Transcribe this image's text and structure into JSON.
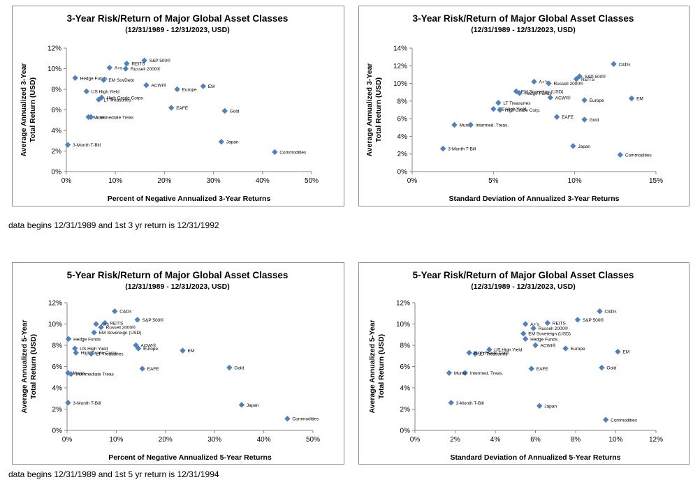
{
  "note1": "data begins 12/31/1989 and 1st 3 yr return is 12/31/1992",
  "note2": "data begins 12/31/1989 and 1st 5 yr return is 12/31/1994",
  "chart_data": [
    {
      "type": "scatter",
      "title": "3-Year Risk/Return of Major Global Asset Classes",
      "subtitle": "(12/31/1989 - 12/31/2023, USD)",
      "xlabel": "Percent of Negative Annualized 3-Year Returns",
      "ylabel": "Average Annualized 3-Year Total Return (USD)",
      "xlim": [
        0,
        50
      ],
      "ylim": [
        0,
        12
      ],
      "xticks": [
        "0%",
        "10%",
        "20%",
        "30%",
        "40%",
        "50%"
      ],
      "yticks": [
        "0%",
        "2%",
        "4%",
        "6%",
        "8%",
        "10%",
        "12%"
      ],
      "marker_color": "#4f81bd",
      "points": [
        {
          "label": "S&P 500®",
          "x": 15.9,
          "y": 10.8
        },
        {
          "label": "REITS",
          "x": 12.3,
          "y": 10.5
        },
        {
          "label": "Russell 2000®",
          "x": 12.1,
          "y": 10.0
        },
        {
          "label": "A+s",
          "x": 8.8,
          "y": 10.1
        },
        {
          "label": "Hedge Funds",
          "x": 1.8,
          "y": 9.1
        },
        {
          "label": "EM SovDebt",
          "x": 7.6,
          "y": 8.9
        },
        {
          "label": "US High Yield",
          "x": 4.1,
          "y": 7.8
        },
        {
          "label": "High Grade Corps",
          "x": 7.2,
          "y": 7.2
        },
        {
          "label": "LT Treasuries",
          "x": 6.6,
          "y": 7.0
        },
        {
          "label": "ACWI®",
          "x": 16.3,
          "y": 8.4
        },
        {
          "label": "Europe",
          "x": 22.6,
          "y": 8.0
        },
        {
          "label": "EM",
          "x": 27.9,
          "y": 8.3
        },
        {
          "label": "EAFE",
          "x": 21.4,
          "y": 6.2
        },
        {
          "label": "Gold",
          "x": 32.3,
          "y": 5.9
        },
        {
          "label": "Intermediate Treas",
          "x": 5.0,
          "y": 5.3
        },
        {
          "label": "Munis",
          "x": 4.5,
          "y": 5.3
        },
        {
          "label": "3-Month T-Bill",
          "x": 0.3,
          "y": 2.6
        },
        {
          "label": "Japan",
          "x": 31.6,
          "y": 2.9
        },
        {
          "label": "Commodities",
          "x": 42.5,
          "y": 1.9
        }
      ]
    },
    {
      "type": "scatter",
      "title": "3-Year Risk/Return of Major Global Asset Classes",
      "subtitle": "(12/31/1989 - 12/31/2023, USD)",
      "xlabel": "Standard Deviation of Annualized 3-Year Returns",
      "ylabel": "Average Annualized 3-Year Total Return (USD)",
      "xlim": [
        0,
        15
      ],
      "ylim": [
        0,
        14
      ],
      "xticks": [
        "0%",
        "5%",
        "10%",
        "15%"
      ],
      "yticks": [
        "0%",
        "2%",
        "4%",
        "6%",
        "8%",
        "10%",
        "12%",
        "14%"
      ],
      "marker_color": "#4f81bd",
      "points": [
        {
          "label": "C&Ds",
          "x": 12.4,
          "y": 12.2
        },
        {
          "label": "A+'s",
          "x": 7.5,
          "y": 10.2
        },
        {
          "label": "S&P 500®",
          "x": 10.3,
          "y": 10.8
        },
        {
          "label": "REITS",
          "x": 10.1,
          "y": 10.5
        },
        {
          "label": "Russell 2000®",
          "x": 8.4,
          "y": 10.0
        },
        {
          "label": "EM Sovereign (USD)",
          "x": 6.4,
          "y": 9.1
        },
        {
          "label": "Hedge Funds",
          "x": 6.6,
          "y": 8.9
        },
        {
          "label": "ACWI®",
          "x": 8.5,
          "y": 8.4
        },
        {
          "label": "Europe",
          "x": 10.6,
          "y": 8.1
        },
        {
          "label": "EM",
          "x": 13.5,
          "y": 8.3
        },
        {
          "label": "LT Treasuries",
          "x": 5.3,
          "y": 7.8
        },
        {
          "label": "US High Yield",
          "x": 5.0,
          "y": 7.1
        },
        {
          "label": "High Grade Corp.",
          "x": 5.4,
          "y": 7.0
        },
        {
          "label": "EAFE",
          "x": 8.9,
          "y": 6.2
        },
        {
          "label": "Gold",
          "x": 10.6,
          "y": 5.9
        },
        {
          "label": "Munis",
          "x": 2.6,
          "y": 5.3
        },
        {
          "label": "Intermed. Treas.",
          "x": 3.6,
          "y": 5.3
        },
        {
          "label": "3-Month T-Bill",
          "x": 1.9,
          "y": 2.6
        },
        {
          "label": "Japan",
          "x": 9.9,
          "y": 2.9
        },
        {
          "label": "Commodities",
          "x": 12.8,
          "y": 1.9
        }
      ]
    },
    {
      "type": "scatter",
      "title": "5-Year Risk/Return of Major Global Asset Classes",
      "subtitle": "(12/31/1989 - 12/31/2023, USD)",
      "xlabel": "Percent of Negative Annualized 5-Year Returns",
      "ylabel": "Average Annualized 5-Year Total Return (USD)",
      "xlim": [
        0,
        50
      ],
      "ylim": [
        0,
        12
      ],
      "xticks": [
        "0%",
        "10%",
        "20%",
        "30%",
        "40%",
        "50%"
      ],
      "yticks": [
        "0%",
        "2%",
        "4%",
        "6%",
        "8%",
        "10%",
        "12%"
      ],
      "marker_color": "#4f81bd",
      "points": [
        {
          "label": "C&Ds",
          "x": 9.7,
          "y": 11.2
        },
        {
          "label": "S&P 500®",
          "x": 14.3,
          "y": 10.4
        },
        {
          "label": "REITS",
          "x": 7.7,
          "y": 10.1
        },
        {
          "label": "A+s",
          "x": 5.9,
          "y": 10.0
        },
        {
          "label": "Russell 2000®",
          "x": 6.9,
          "y": 9.7
        },
        {
          "label": "EM Sovereign (USD)",
          "x": 5.5,
          "y": 9.2
        },
        {
          "label": "Hedge Funds",
          "x": 0.3,
          "y": 8.6
        },
        {
          "label": "US High Yield",
          "x": 1.6,
          "y": 7.7
        },
        {
          "label": "High Grade Corps",
          "x": 1.8,
          "y": 7.3
        },
        {
          "label": "LT Treasuries",
          "x": 4.9,
          "y": 7.2
        },
        {
          "label": "ACWI®",
          "x": 14.0,
          "y": 8.0
        },
        {
          "label": "Europe",
          "x": 14.5,
          "y": 7.7
        },
        {
          "label": "EM",
          "x": 23.5,
          "y": 7.5
        },
        {
          "label": "EAFE",
          "x": 15.3,
          "y": 5.8
        },
        {
          "label": "Gold",
          "x": 33.0,
          "y": 5.9
        },
        {
          "label": "Intermediate Treas",
          "x": 0.8,
          "y": 5.3
        },
        {
          "label": "Munis",
          "x": 0.2,
          "y": 5.4
        },
        {
          "label": "3-Month T-Bill",
          "x": 0.2,
          "y": 2.6
        },
        {
          "label": "Japan",
          "x": 35.5,
          "y": 2.4
        },
        {
          "label": "Commodities",
          "x": 44.8,
          "y": 1.1
        }
      ]
    },
    {
      "type": "scatter",
      "title": "5-Year Risk/Return of Major Global Asset Classes",
      "subtitle": "(12/31/1989 - 12/31/2023, USD)",
      "xlabel": "Standard Deviation of Annualized 5-Year Returns",
      "ylabel": "Average Annualized 5-Year Total Return (USD)",
      "xlim": [
        0,
        12
      ],
      "ylim": [
        0,
        12
      ],
      "xticks": [
        "0%",
        "2%",
        "4%",
        "6%",
        "8%",
        "10%",
        "12%"
      ],
      "yticks": [
        "0%",
        "2%",
        "4%",
        "6%",
        "8%",
        "10%",
        "12%"
      ],
      "marker_color": "#4f81bd",
      "points": [
        {
          "label": "C&Ds",
          "x": 9.2,
          "y": 11.2
        },
        {
          "label": "S&P 500®",
          "x": 8.1,
          "y": 10.4
        },
        {
          "label": "REITS",
          "x": 6.6,
          "y": 10.1
        },
        {
          "label": "A+'s",
          "x": 5.5,
          "y": 10.0
        },
        {
          "label": "Russell 2000®",
          "x": 5.9,
          "y": 9.6
        },
        {
          "label": "EM Sovereign (USD)",
          "x": 5.4,
          "y": 9.1
        },
        {
          "label": "Hedge Funds",
          "x": 5.5,
          "y": 8.6
        },
        {
          "label": "ACWI®",
          "x": 6.0,
          "y": 8.0
        },
        {
          "label": "Europe",
          "x": 7.5,
          "y": 7.7
        },
        {
          "label": "EM",
          "x": 10.1,
          "y": 7.4
        },
        {
          "label": "US High Yield",
          "x": 3.7,
          "y": 7.6
        },
        {
          "label": "LT Treasuries",
          "x": 3.0,
          "y": 7.2
        },
        {
          "label": "High Grade Corp.",
          "x": 2.7,
          "y": 7.3
        },
        {
          "label": "EAFE",
          "x": 5.8,
          "y": 5.8
        },
        {
          "label": "Gold",
          "x": 9.3,
          "y": 5.9
        },
        {
          "label": "Intermed. Treas.",
          "x": 2.5,
          "y": 5.4
        },
        {
          "label": "Munis",
          "x": 1.7,
          "y": 5.4
        },
        {
          "label": "3-Month T-Bill",
          "x": 1.8,
          "y": 2.6
        },
        {
          "label": "Japan",
          "x": 6.2,
          "y": 2.3
        },
        {
          "label": "Commodities",
          "x": 9.5,
          "y": 1.0
        }
      ]
    }
  ]
}
